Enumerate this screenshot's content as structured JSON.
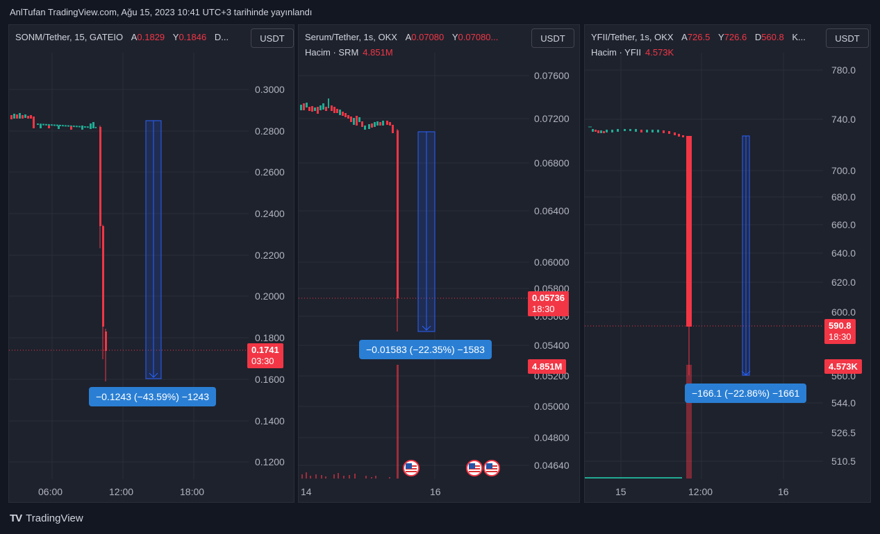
{
  "header": {
    "published": "AnlTufan TradingView.com, Ağu 15, 2023 10:41 UTC+3 tarihinde yayınlandı"
  },
  "footer": {
    "brand": "TradingView",
    "logo": "TV"
  },
  "panels": [
    {
      "symbol": "SONM/Tether, 15, GATEIO",
      "o_key": "A",
      "o_val": "0.1829",
      "h_key": "Y",
      "h_val": "0.1846",
      "tail": "D...",
      "currency": "USDT",
      "y_ticks": [
        "0.3000",
        "0.2800",
        "0.2600",
        "0.2400",
        "0.2200",
        "0.2000",
        "0.1800",
        "0.1600",
        "0.1400",
        "0.1200"
      ],
      "x_ticks": [
        "06:00",
        "12:00",
        "18:00"
      ],
      "price": "0.1741",
      "countdown": "03:30",
      "measure": "−0.1243 (−43.59%) −1243"
    },
    {
      "symbol": "Serum/Tether, 1s, OKX",
      "o_key": "A",
      "o_val": "0.07080",
      "h_key": "Y",
      "h_val": "0.07080...",
      "tail": "",
      "volume_label": "Hacim · SRM",
      "volume_val": "4.851M",
      "currency": "USDT",
      "y_ticks": [
        "0.07600",
        "0.07200",
        "0.06800",
        "0.06400",
        "0.06000",
        "0.05800",
        "0.05600",
        "0.05400",
        "0.05200",
        "0.05000",
        "0.04800",
        "0.04640"
      ],
      "x_ticks": [
        "14",
        "16"
      ],
      "price": "0.05736",
      "countdown": "18:30",
      "vol_badge": "4.851M",
      "measure": "−0.01583 (−22.35%) −1583"
    },
    {
      "symbol": "YFII/Tether, 1s, OKX",
      "o_key": "A",
      "o_val": "726.5",
      "h_key": "Y",
      "h_val": "726.6",
      "l_key": "D",
      "l_val": "560.8",
      "tail": "K...",
      "volume_label": "Hacim · YFII",
      "volume_val": "4.573K",
      "currency": "USDT",
      "y_ticks": [
        "780.0",
        "740.0",
        "700.0",
        "680.0",
        "660.0",
        "640.0",
        "620.0",
        "600.0",
        "560.0",
        "544.0",
        "526.5",
        "510.5"
      ],
      "x_ticks": [
        "15",
        "12:00",
        "16"
      ],
      "price": "590.8",
      "countdown": "18:30",
      "vol_badge": "4.573K",
      "measure": "−166.1 (−22.86%) −1661"
    }
  ]
}
